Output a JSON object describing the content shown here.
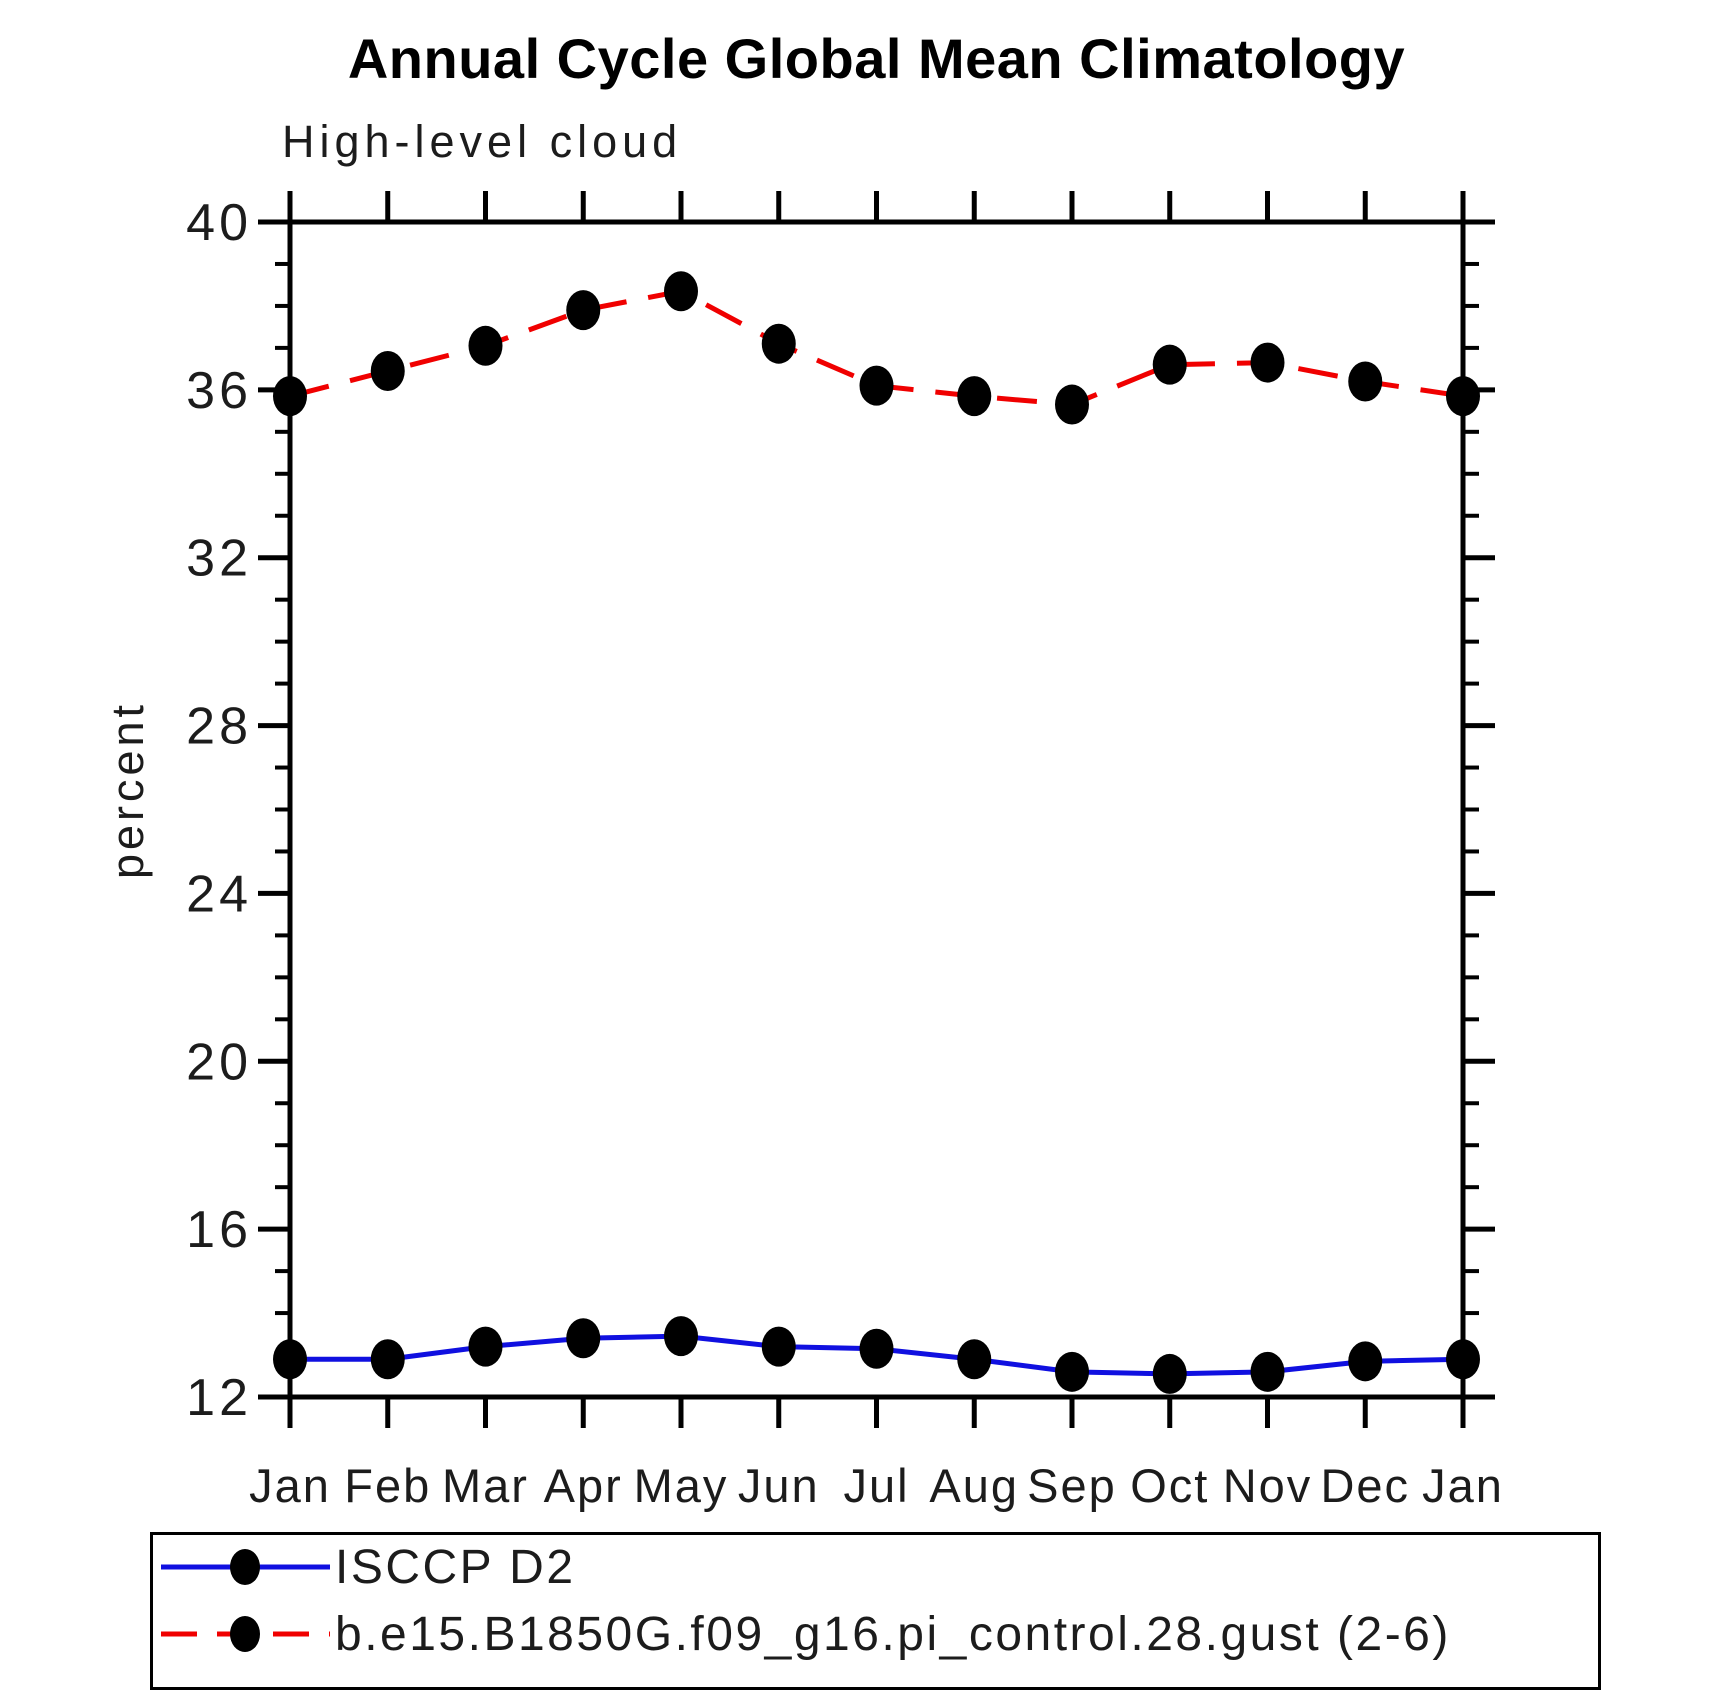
{
  "title": "Annual Cycle Global Mean Climatology",
  "chart_data": {
    "type": "line",
    "title": "Annual Cycle Global Mean Climatology",
    "subtitle": "High-level cloud",
    "ylabel": "percent",
    "xlabel": "",
    "ylim": [
      12,
      40
    ],
    "ytick_major": [
      12,
      16,
      20,
      24,
      28,
      32,
      36,
      40
    ],
    "ytick_minor_step": 1,
    "grid": false,
    "legend_position": "bottom",
    "categories": [
      "Jan",
      "Feb",
      "Mar",
      "Apr",
      "May",
      "Jun",
      "Jul",
      "Aug",
      "Sep",
      "Oct",
      "Nov",
      "Dec",
      "Jan"
    ],
    "series": [
      {
        "name": "ISCCP D2",
        "color": "#1010e0",
        "line_style": "solid",
        "marker": "filled-black-circle",
        "values": [
          12.9,
          12.9,
          13.2,
          13.4,
          13.45,
          13.2,
          13.15,
          12.9,
          12.6,
          12.55,
          12.6,
          12.85,
          12.9
        ]
      },
      {
        "name": "b.e15.B1850G.f09_g16.pi_control.28.gust (2-6)",
        "color": "#f00000",
        "line_style": "dashed",
        "marker": "filled-black-circle",
        "values": [
          35.85,
          36.45,
          37.05,
          37.9,
          38.35,
          37.1,
          36.1,
          35.85,
          35.65,
          36.6,
          36.65,
          36.2,
          35.85
        ]
      }
    ],
    "marker_color": "#000000",
    "axis_color": "#000000"
  }
}
